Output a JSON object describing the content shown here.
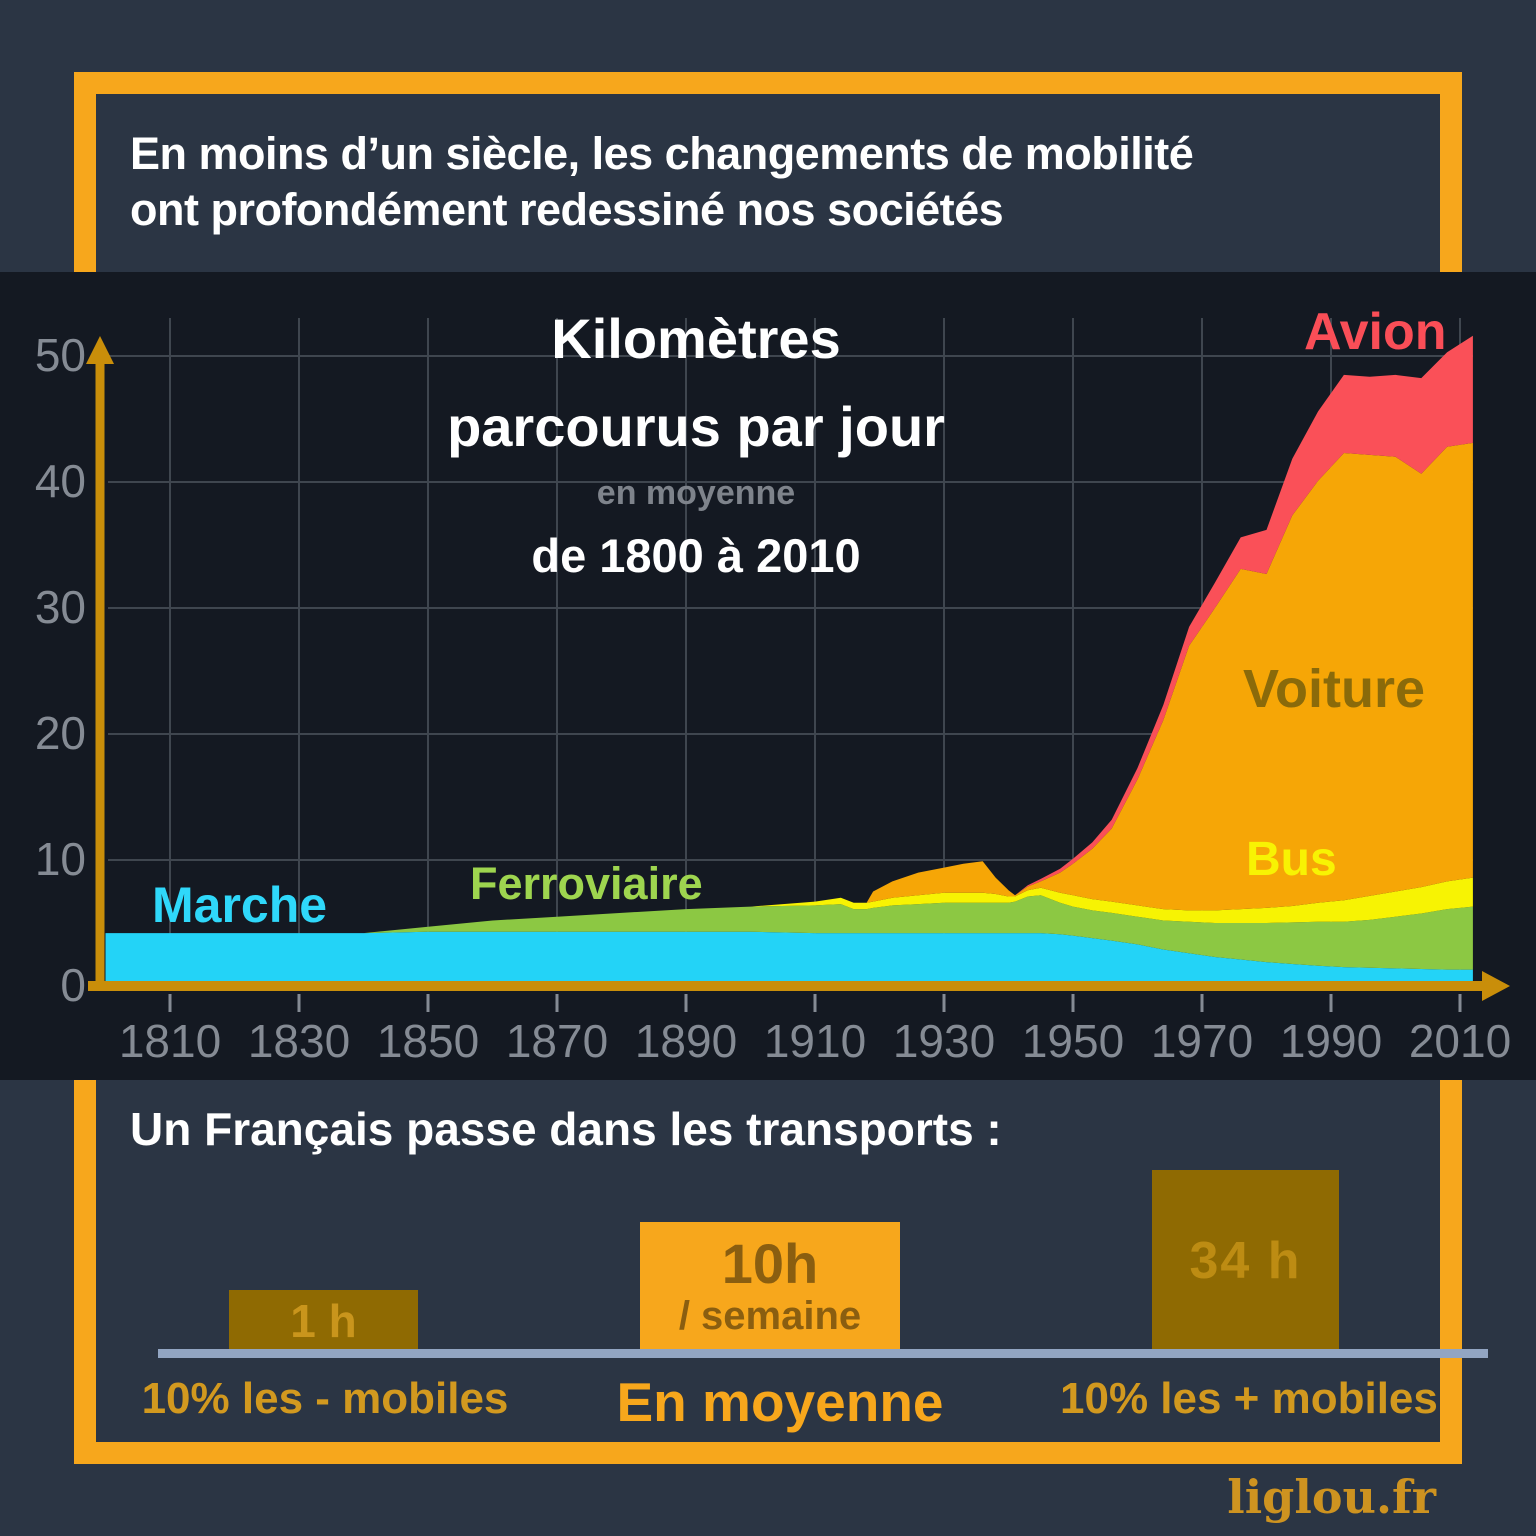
{
  "header": {
    "line1": "En moins d’un siècle, les changements de mobilité",
    "line2": "ont profondément redessiné nos sociétés"
  },
  "chart": {
    "title1": "Kilomètres",
    "title2": "parcourus par jour",
    "subtitle": "en moyenne",
    "period": "de 1800 à 2010",
    "labels": {
      "marche": "Marche",
      "ferroviaire": "Ferroviaire",
      "bus": "Bus",
      "voiture": "Voiture",
      "avion": "Avion"
    }
  },
  "chart_data": [
    {
      "type": "area",
      "stacked": true,
      "title": "Kilomètres parcourus par jour (en moyenne) de 1800 à 2010",
      "xlabel": "",
      "ylabel": "",
      "xlim": [
        1800,
        2012
      ],
      "ylim": [
        0,
        50
      ],
      "grid": true,
      "legend_position": "inline-labels",
      "x_ticks": [
        1810,
        1830,
        1850,
        1870,
        1890,
        1910,
        1930,
        1950,
        1970,
        1990,
        2010
      ],
      "y_ticks": [
        0,
        10,
        20,
        30,
        40,
        50
      ],
      "x": [
        1800,
        1810,
        1820,
        1830,
        1840,
        1850,
        1860,
        1870,
        1880,
        1890,
        1900,
        1910,
        1914,
        1916,
        1918,
        1919,
        1922,
        1926,
        1930,
        1933,
        1936,
        1938,
        1940,
        1941,
        1943,
        1945,
        1948,
        1950,
        1953,
        1956,
        1960,
        1964,
        1968,
        1972,
        1976,
        1980,
        1984,
        1988,
        1992,
        1996,
        2000,
        2004,
        2008,
        2012
      ],
      "series": [
        {
          "name": "Marche",
          "color": "#23D3F7",
          "values": [
            4.2,
            4.2,
            4.2,
            4.2,
            4.2,
            4.3,
            4.3,
            4.3,
            4.3,
            4.3,
            4.3,
            4.2,
            4.2,
            4.2,
            4.2,
            4.2,
            4.2,
            4.2,
            4.2,
            4.2,
            4.2,
            4.2,
            4.2,
            4.2,
            4.2,
            4.2,
            4.1,
            4.0,
            3.8,
            3.6,
            3.3,
            2.9,
            2.6,
            2.3,
            2.1,
            1.9,
            1.75,
            1.6,
            1.5,
            1.45,
            1.4,
            1.35,
            1.3,
            1.3
          ]
        },
        {
          "name": "Ferroviaire",
          "color": "#8CC843",
          "values": [
            0,
            0,
            0,
            0,
            0,
            0.4,
            0.9,
            1.2,
            1.5,
            1.8,
            2.0,
            2.2,
            2.3,
            1.9,
            1.9,
            2.0,
            2.2,
            2.3,
            2.4,
            2.4,
            2.4,
            2.4,
            2.4,
            2.5,
            2.9,
            3.0,
            2.5,
            2.3,
            2.2,
            2.2,
            2.2,
            2.3,
            2.5,
            2.7,
            2.9,
            3.1,
            3.3,
            3.5,
            3.6,
            3.8,
            4.1,
            4.4,
            4.8,
            5.0
          ]
        },
        {
          "name": "Bus",
          "color": "#F7F303",
          "values": [
            0,
            0,
            0,
            0,
            0,
            0,
            0,
            0,
            0,
            0,
            0,
            0.3,
            0.5,
            0.5,
            0.5,
            0.5,
            0.6,
            0.7,
            0.8,
            0.8,
            0.8,
            0.7,
            0.5,
            0.4,
            0.5,
            0.6,
            0.8,
            0.9,
            0.9,
            0.9,
            0.9,
            0.9,
            0.9,
            1.0,
            1.1,
            1.2,
            1.3,
            1.5,
            1.7,
            1.9,
            2.0,
            2.1,
            2.2,
            2.3
          ]
        },
        {
          "name": "Voiture",
          "color": "#F6A606",
          "values": [
            0,
            0,
            0,
            0,
            0,
            0,
            0,
            0,
            0,
            0,
            0,
            0,
            0,
            0,
            0,
            0.8,
            1.3,
            1.8,
            2.0,
            2.3,
            2.5,
            1.3,
            0.5,
            0.1,
            0.3,
            0.5,
            1.6,
            2.5,
            4.0,
            5.8,
            10.0,
            15.0,
            21.0,
            24.0,
            27.0,
            26.5,
            31.0,
            33.5,
            35.5,
            35.0,
            34.5,
            32.8,
            34.5,
            34.5
          ]
        },
        {
          "name": "Avion",
          "color": "#FA5058",
          "values": [
            0,
            0,
            0,
            0,
            0,
            0,
            0,
            0,
            0,
            0,
            0,
            0,
            0,
            0,
            0,
            0,
            0,
            0,
            0,
            0,
            0,
            0,
            0,
            0,
            0.1,
            0.2,
            0.3,
            0.4,
            0.5,
            0.7,
            0.9,
            1.2,
            1.5,
            2.0,
            2.5,
            3.5,
            4.5,
            5.5,
            6.2,
            6.2,
            6.5,
            7.6,
            7.5,
            8.5
          ]
        }
      ]
    },
    {
      "type": "bar",
      "title": "Un Français passe dans les transports :",
      "categories": [
        "10% les - mobiles",
        "En moyenne",
        "10% les + mobiles"
      ],
      "values": [
        1,
        10,
        34
      ],
      "unit": "heures / semaine",
      "labels": [
        "1 h",
        "10h / semaine",
        "34 h"
      ]
    }
  ],
  "bottom": {
    "heading": "Un Français passe dans les transports :",
    "bars": [
      {
        "label": "1 h"
      },
      {
        "value": "10h",
        "unit": "/ semaine"
      },
      {
        "label": "34 h"
      }
    ],
    "captions": {
      "left": "10% les - mobiles",
      "center": "En moyenne",
      "right": "10% les + mobiles"
    }
  },
  "site": "liglou.fr",
  "colors": {
    "accent_orange": "#F7A71C",
    "slate_bg": "#2B3544",
    "chart_bg": "#141922",
    "axis": "#C98E0A",
    "grid": "#3F464F",
    "tick_text": "#858B94",
    "marche": "#23D3F7",
    "ferroviaire": "#8CC843",
    "bus": "#F7F303",
    "voiture": "#F6A606",
    "avion": "#FA5058",
    "dark_gold_bar": "#8F6A02",
    "brown_text": "#8A5E10",
    "caption_gold": "#D2991F",
    "baseline": "#92A5C2",
    "site_gold": "#CE9320"
  }
}
